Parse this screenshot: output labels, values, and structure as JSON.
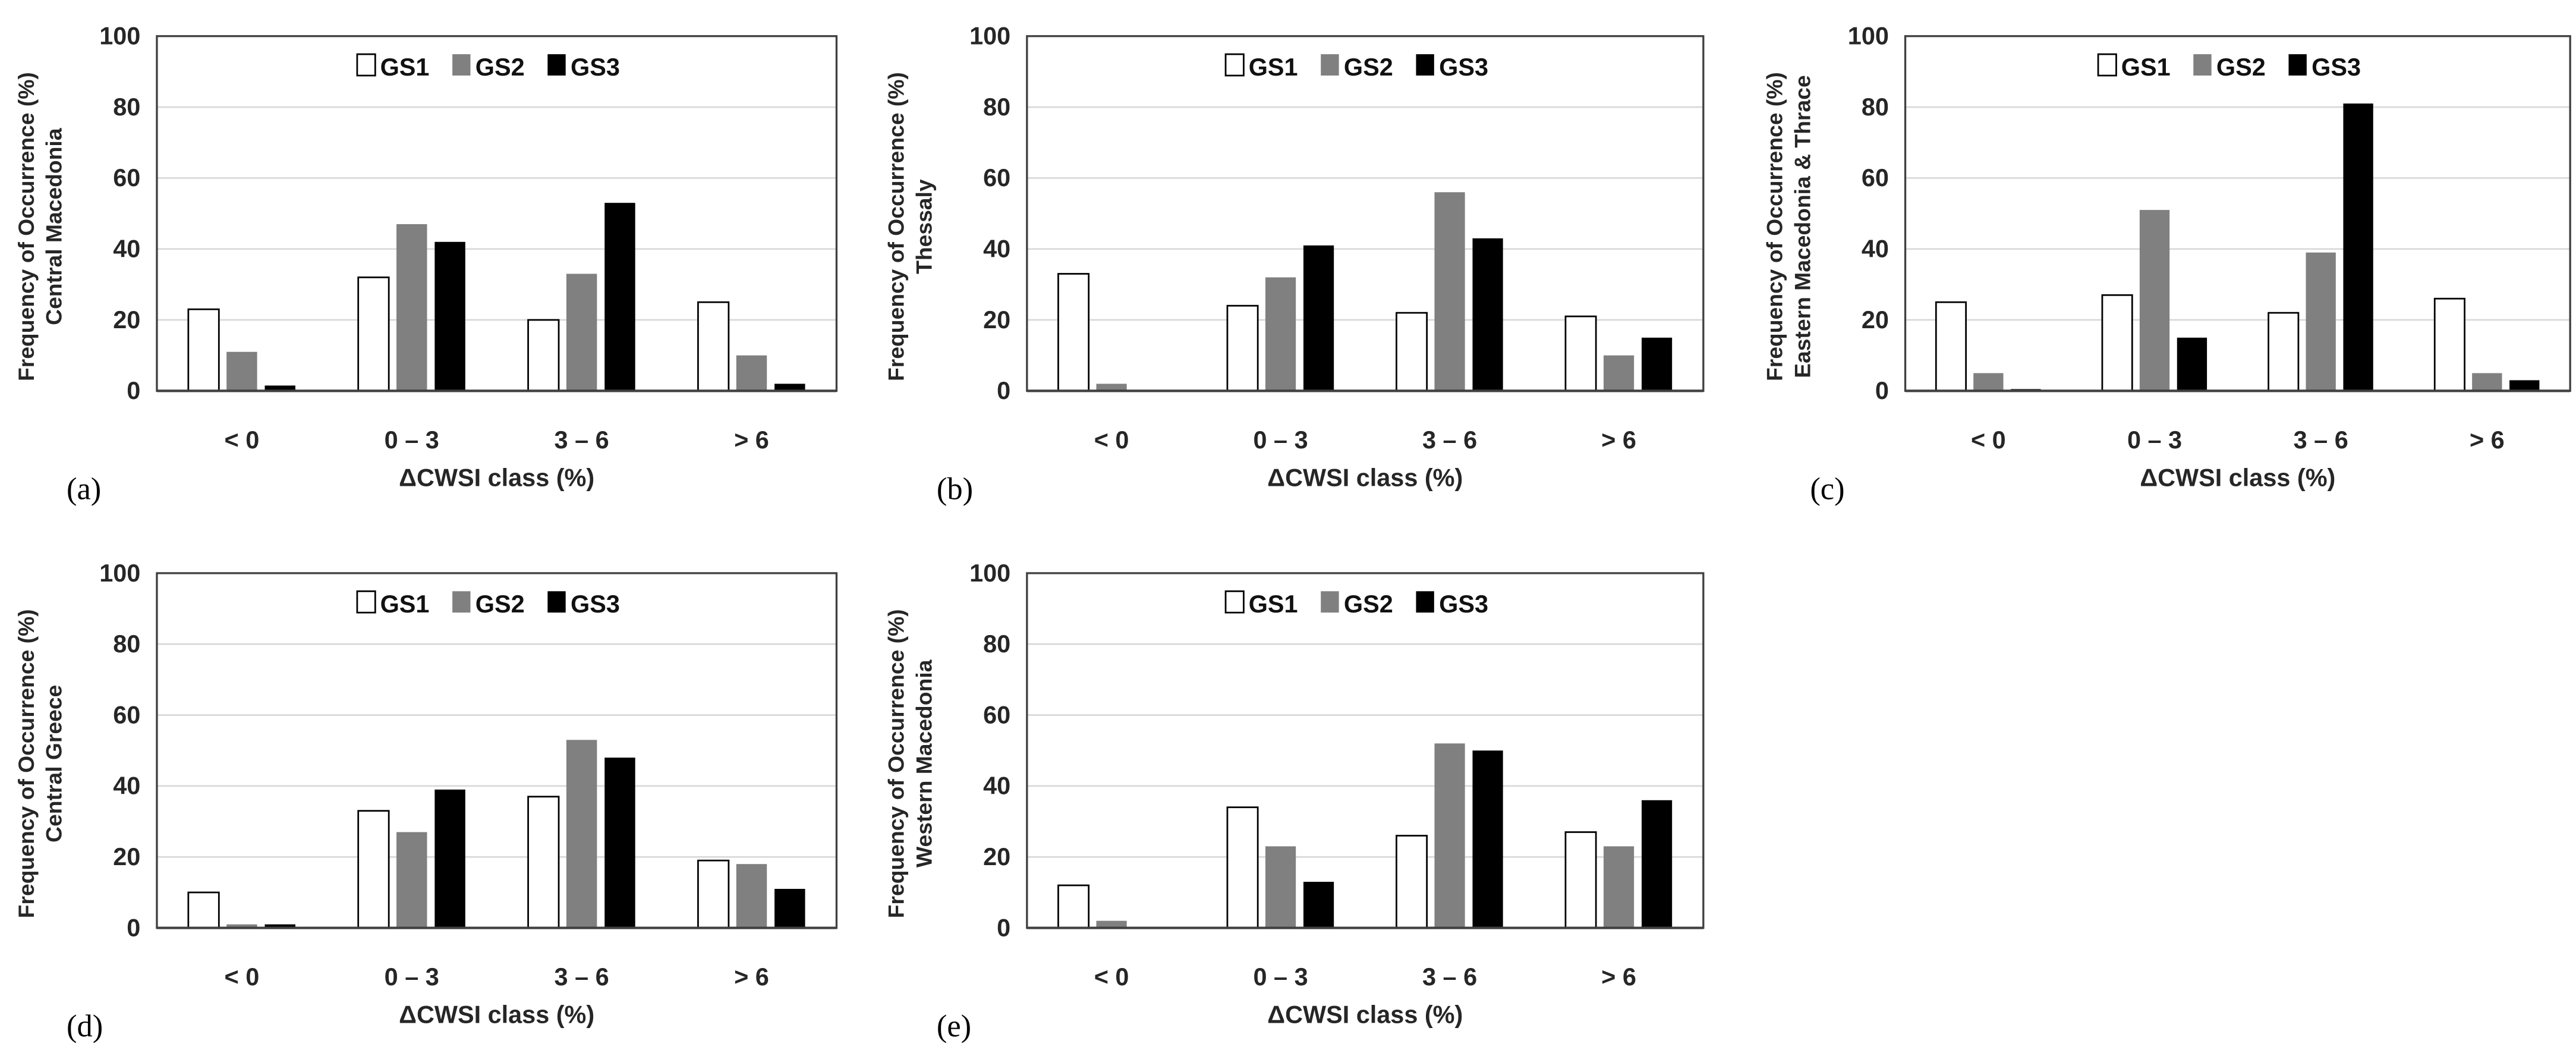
{
  "chart_data": [
    {
      "panel": "(a)",
      "type": "bar",
      "region": "Central Macedonia",
      "ylabel": "Frequency of Occurrence (%)",
      "xlabel": "ΔCWSI class (%)",
      "categories": [
        "< 0",
        "0 – 3",
        "3 – 6",
        "> 6"
      ],
      "ylim": [
        0,
        100
      ],
      "yticks": [
        0,
        20,
        40,
        60,
        80,
        100
      ],
      "grid": true,
      "legend": "top-center",
      "series": [
        {
          "name": "GS1",
          "values": [
            23,
            32,
            20,
            25
          ]
        },
        {
          "name": "GS2",
          "values": [
            11,
            47,
            33,
            10
          ]
        },
        {
          "name": "GS3",
          "values": [
            1.5,
            42,
            53,
            2
          ]
        }
      ]
    },
    {
      "panel": "(b)",
      "type": "bar",
      "region": "Thessaly",
      "ylabel": "Frequency of Occurrence (%)",
      "xlabel": "ΔCWSI class (%)",
      "categories": [
        "< 0",
        "0 – 3",
        "3 – 6",
        "> 6"
      ],
      "ylim": [
        0,
        100
      ],
      "yticks": [
        0,
        20,
        40,
        60,
        80,
        100
      ],
      "grid": true,
      "legend": "top-center",
      "series": [
        {
          "name": "GS1",
          "values": [
            33,
            24,
            22,
            21
          ]
        },
        {
          "name": "GS2",
          "values": [
            2,
            32,
            56,
            10
          ]
        },
        {
          "name": "GS3",
          "values": [
            0,
            41,
            43,
            15
          ]
        }
      ]
    },
    {
      "panel": "(c)",
      "type": "bar",
      "region": "Eastern Macedonia & Thrace",
      "ylabel": "Frequency of Occurrence (%)",
      "xlabel": "ΔCWSI class (%)",
      "categories": [
        "< 0",
        "0 – 3",
        "3 – 6",
        "> 6"
      ],
      "ylim": [
        0,
        100
      ],
      "yticks": [
        0,
        20,
        40,
        60,
        80,
        100
      ],
      "grid": true,
      "legend": "top-center",
      "series": [
        {
          "name": "GS1",
          "values": [
            25,
            27,
            22,
            26
          ]
        },
        {
          "name": "GS2",
          "values": [
            5,
            51,
            39,
            5
          ]
        },
        {
          "name": "GS3",
          "values": [
            0.5,
            15,
            81,
            3
          ]
        }
      ]
    },
    {
      "panel": "(d)",
      "type": "bar",
      "region": "Central Greece",
      "ylabel": "Frequency of Occurrence (%)",
      "xlabel": "ΔCWSI class (%)",
      "categories": [
        "< 0",
        "0 – 3",
        "3 – 6",
        "> 6"
      ],
      "ylim": [
        0,
        100
      ],
      "yticks": [
        0,
        20,
        40,
        60,
        80,
        100
      ],
      "grid": true,
      "legend": "top-center",
      "series": [
        {
          "name": "GS1",
          "values": [
            10,
            33,
            37,
            19
          ]
        },
        {
          "name": "GS2",
          "values": [
            1,
            27,
            53,
            18
          ]
        },
        {
          "name": "GS3",
          "values": [
            1,
            39,
            48,
            11
          ]
        }
      ]
    },
    {
      "panel": "(e)",
      "type": "bar",
      "region": "Western Macedonia",
      "ylabel": "Frequency of Occurrence (%)",
      "xlabel": "ΔCWSI class (%)",
      "categories": [
        "< 0",
        "0 – 3",
        "3 – 6",
        "> 6"
      ],
      "ylim": [
        0,
        100
      ],
      "yticks": [
        0,
        20,
        40,
        60,
        80,
        100
      ],
      "grid": true,
      "legend": "top-center",
      "series": [
        {
          "name": "GS1",
          "values": [
            12,
            34,
            26,
            27
          ]
        },
        {
          "name": "GS2",
          "values": [
            2,
            23,
            52,
            23
          ]
        },
        {
          "name": "GS3",
          "values": [
            0,
            13,
            50,
            36
          ]
        }
      ]
    }
  ],
  "colors": {
    "GS1": "#ffffff",
    "GS2": "#808080",
    "GS3": "#000000",
    "grid": "#d9d9d9"
  }
}
